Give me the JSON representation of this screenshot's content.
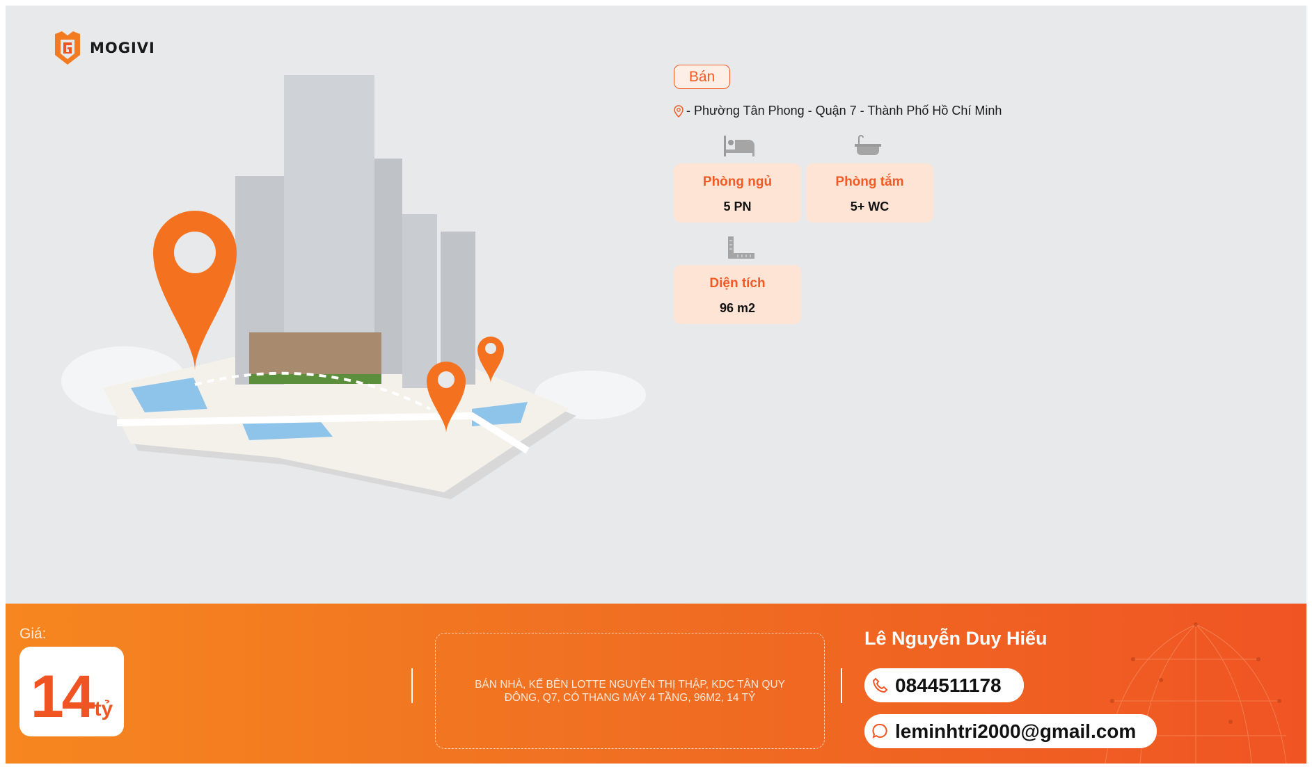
{
  "brand": {
    "name": "MOGIVI",
    "accent": "#f15a24"
  },
  "listing": {
    "type_badge": "Bán",
    "address": "- Phường Tân Phong - Quận 7 - Thành Phố Hồ Chí Minh",
    "features": [
      {
        "icon": "bed-icon",
        "label": "Phòng ngủ",
        "value": "5 PN"
      },
      {
        "icon": "bathtub-icon",
        "label": "Phòng tắm",
        "value": "5+ WC"
      },
      {
        "icon": "ruler-icon",
        "label": "Diện tích",
        "value": "96 m2"
      }
    ]
  },
  "banner": {
    "price_label": "Giá:",
    "price_value": "14",
    "price_unit": "tỷ",
    "description": "BÁN NHÀ, KẾ BÊN LOTTE NGUYỄN THỊ THẬP, KDC TÂN QUY ĐÔNG, Q7, CÓ THANG MÁY 4 TẦNG, 96M2, 14 TỶ",
    "agent_name": "Lê Nguyễn Duy Hiếu",
    "phone": "0844511178",
    "email": "leminhtri2000@gmail.com"
  }
}
